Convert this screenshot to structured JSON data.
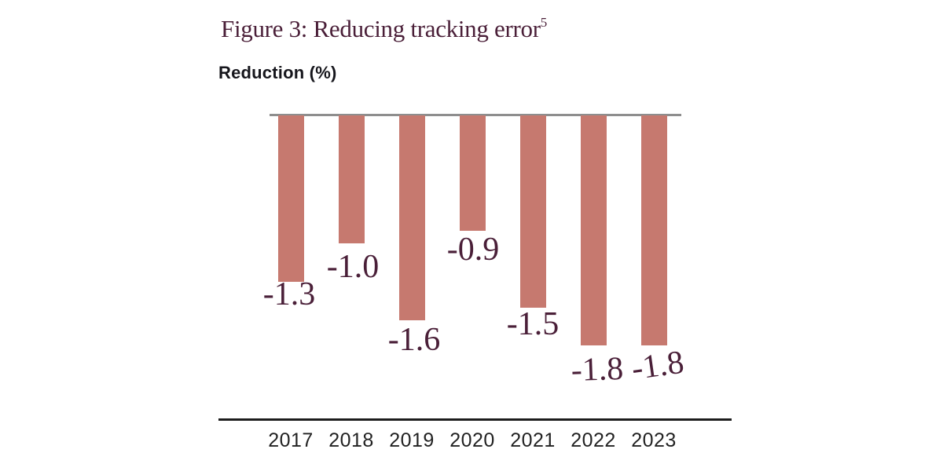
{
  "figure": {
    "title": "Figure 3: Reducing tracking error",
    "footnote_marker": "5",
    "y_axis_label": "Reduction (%)"
  },
  "chart_data": {
    "type": "bar",
    "title": "Figure 3: Reducing tracking error [footnote 5]",
    "ylabel": "Reduction (%)",
    "xlabel": "",
    "categories": [
      "2017",
      "2018",
      "2019",
      "2020",
      "2021",
      "2022",
      "2023"
    ],
    "values": [
      -1.3,
      -1.0,
      -1.6,
      -0.9,
      -1.5,
      -1.8,
      -1.8
    ],
    "data_labels": [
      "-1.3",
      "-1.0",
      "-1.6",
      "-0.9",
      "-1.5",
      "-1.8",
      "-1.8"
    ],
    "ylim": [
      -2.0,
      0
    ],
    "grid": false,
    "legend": "none",
    "orientation": "vertical-downward-from-zero-line",
    "colors": {
      "bar": "#C6796F",
      "zero_line": "#8E8E8E",
      "axis_line": "#1C1C1C",
      "data_label": "#4A1F38",
      "tick_label": "#222222",
      "title": "#4A1F38"
    }
  }
}
